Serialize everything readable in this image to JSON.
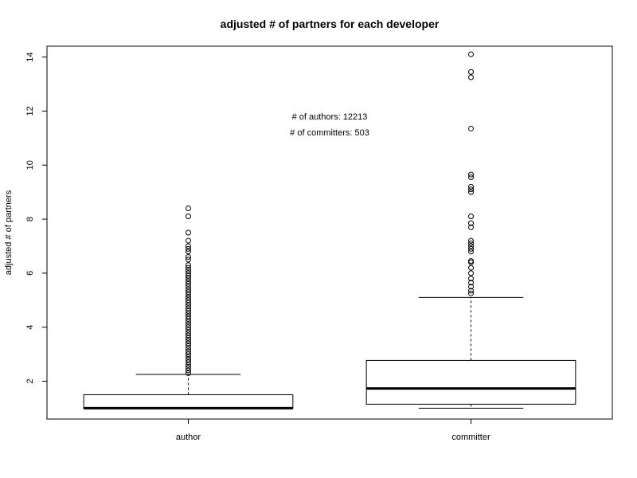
{
  "chart_data": {
    "type": "boxplot",
    "title": "adjusted # of partners for each developer",
    "xlabel": "",
    "ylabel": "adjusted # of partners",
    "ylim": [
      0.6,
      14.4
    ],
    "yticks": [
      2,
      4,
      6,
      8,
      10,
      12,
      14
    ],
    "categories": [
      "author",
      "committer"
    ],
    "series": [
      {
        "category": "author",
        "whisker_low": 1.0,
        "q1": 1.0,
        "median": 1.0,
        "q3": 1.5,
        "whisker_high": 2.25,
        "outliers": [
          2.3,
          2.4,
          2.5,
          2.6,
          2.7,
          2.8,
          2.9,
          3.0,
          3.1,
          3.2,
          3.3,
          3.4,
          3.5,
          3.6,
          3.7,
          3.8,
          3.9,
          4.0,
          4.1,
          4.2,
          4.3,
          4.4,
          4.5,
          4.6,
          4.7,
          4.8,
          4.9,
          5.0,
          5.1,
          5.2,
          5.3,
          5.4,
          5.5,
          5.6,
          5.7,
          5.8,
          5.9,
          6.0,
          6.1,
          6.2,
          6.3,
          6.5,
          6.6,
          6.8,
          6.9,
          7.0,
          7.2,
          7.5,
          8.1,
          8.4
        ]
      },
      {
        "category": "committer",
        "whisker_low": 1.0,
        "q1": 1.15,
        "median": 1.73,
        "q3": 2.77,
        "whisker_high": 5.1,
        "outliers": [
          5.25,
          5.35,
          5.5,
          5.65,
          5.8,
          6.0,
          6.2,
          6.4,
          6.45,
          6.8,
          6.9,
          7.0,
          7.1,
          7.2,
          7.7,
          7.85,
          8.1,
          9.0,
          9.1,
          9.2,
          9.55,
          9.65,
          11.35,
          13.25,
          13.45,
          14.1
        ]
      }
    ],
    "annotations": [
      "# of authors: 12213",
      "# of committers: 503"
    ],
    "grid": false,
    "legend": "none"
  }
}
